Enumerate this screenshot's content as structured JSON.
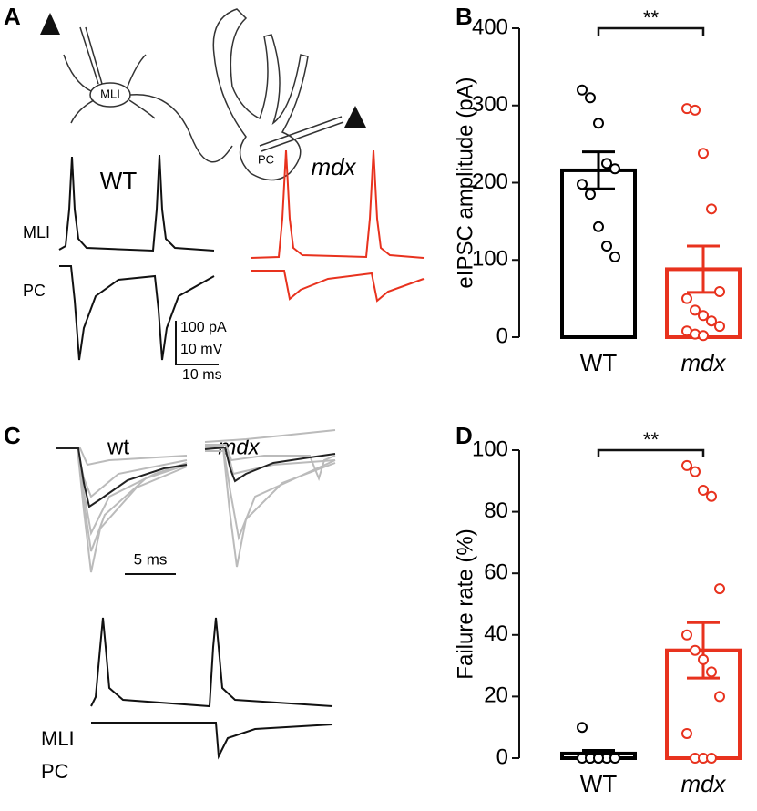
{
  "panels": {
    "labels": [
      "A",
      "B",
      "C",
      "D"
    ],
    "a": {
      "cell_mli": "MLI",
      "cell_pc": "PC",
      "wt": "WT",
      "mdx": "mdx",
      "trace_mli": "MLI",
      "trace_pc": "PC",
      "scale_current": "100 pA",
      "scale_voltage": "10 mV",
      "scale_time": "10 ms"
    },
    "c": {
      "wt": "wt",
      "mdx": "mdx",
      "scale_time": "5 ms",
      "trace_mli": "MLI",
      "trace_pc": "PC"
    }
  },
  "chart_data": [
    {
      "type": "bar",
      "ylabel": "eIPSC amplitude (pA)",
      "categories": [
        "WT",
        "mdx"
      ],
      "values": [
        216,
        88
      ],
      "errors": [
        24,
        30
      ],
      "colors": [
        "#000000",
        "#e8321e"
      ],
      "points": [
        [
          320,
          310,
          277,
          225,
          218,
          198,
          185,
          143,
          118,
          104
        ],
        [
          296,
          294,
          238,
          166,
          59,
          50,
          35,
          28,
          21,
          14,
          8,
          4,
          2
        ]
      ],
      "ylim": [
        0,
        400
      ],
      "yticks": [
        0,
        100,
        200,
        300,
        400
      ],
      "annotation": "**"
    },
    {
      "type": "bar",
      "ylabel": "Failure rate (%)",
      "categories": [
        "WT",
        "mdx"
      ],
      "values": [
        1.5,
        35
      ],
      "errors": [
        1,
        9
      ],
      "colors": [
        "#000000",
        "#e8321e"
      ],
      "points": [
        [
          10,
          0,
          0,
          0,
          0,
          0,
          0,
          0
        ],
        [
          95,
          93,
          87,
          85,
          55,
          40,
          35,
          32,
          28,
          20,
          8,
          0,
          0,
          0
        ]
      ],
      "ylim": [
        0,
        100
      ],
      "yticks": [
        0,
        20,
        40,
        60,
        80,
        100
      ],
      "annotation": "**"
    }
  ]
}
